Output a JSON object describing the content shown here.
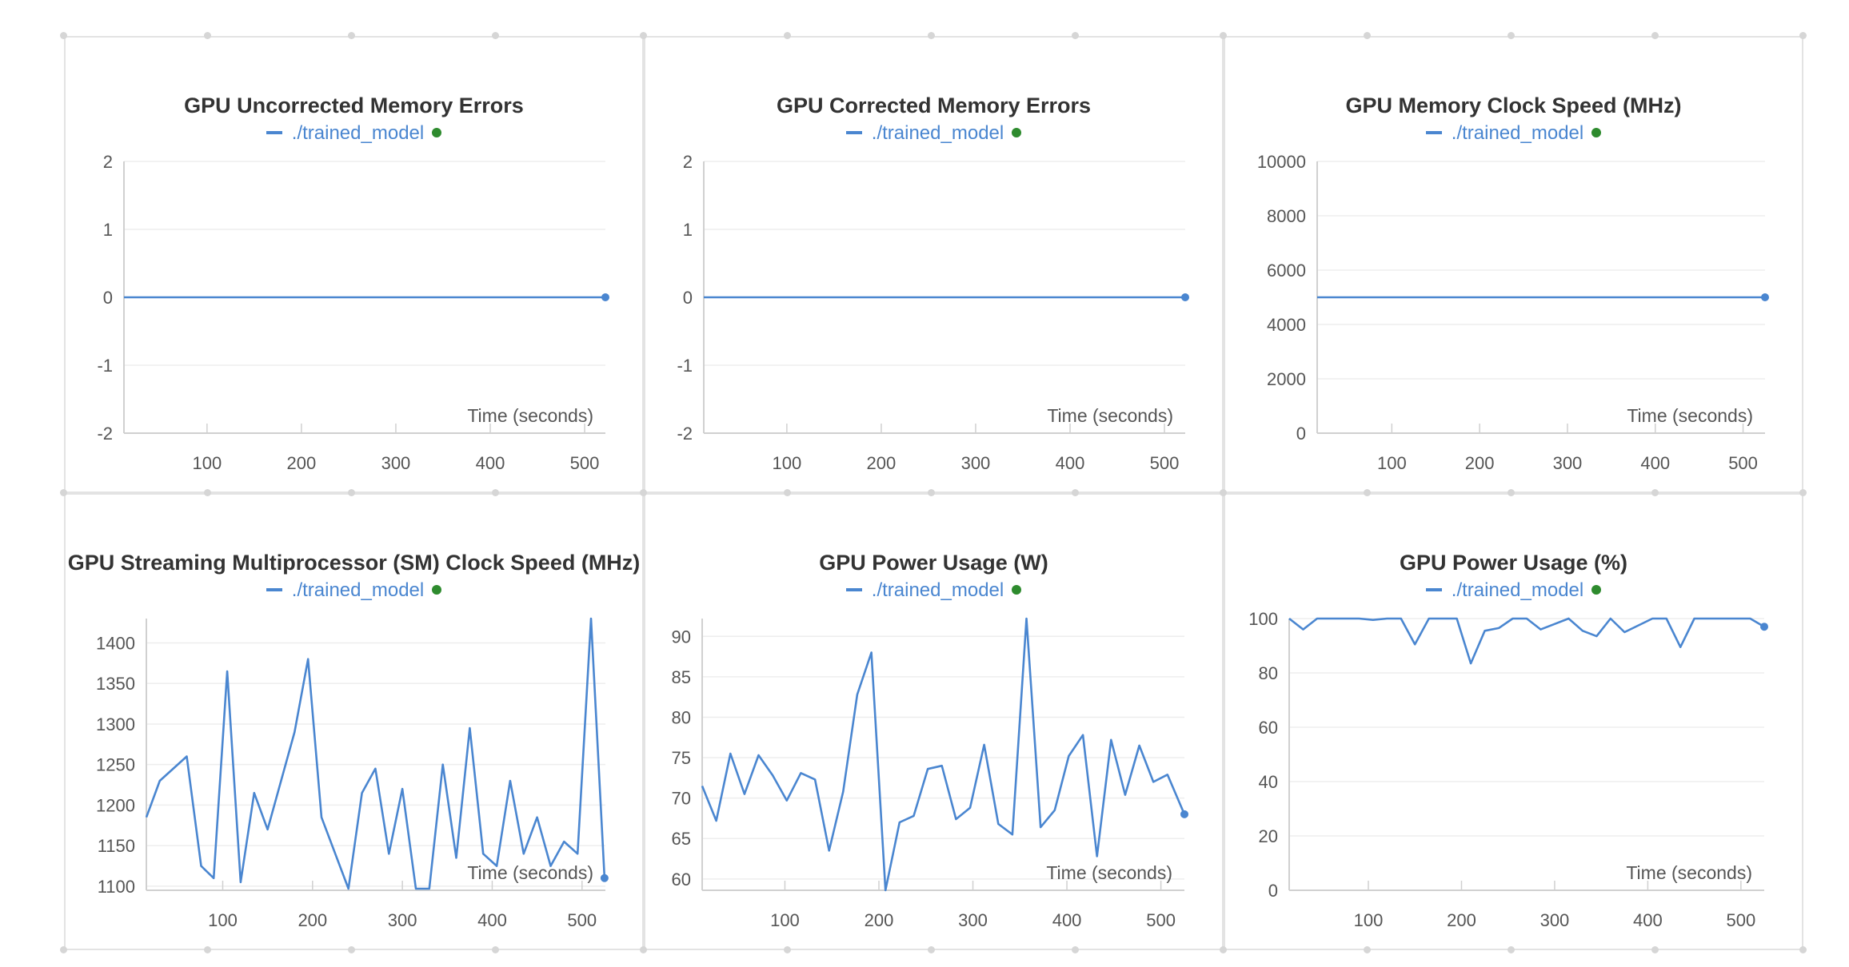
{
  "colors": {
    "series": "#4a86d0",
    "legend_dot": "#2e8b2e",
    "grid": "#eeeeee",
    "axis": "#d0d0d0",
    "text": "#555555"
  },
  "chart_data": [
    {
      "type": "line",
      "title": "GPU Uncorrected Memory Errors",
      "xlabel": "Time (seconds)",
      "ylabel": "",
      "xlim": [
        12,
        522
      ],
      "ylim": [
        -2,
        2
      ],
      "x_ticks": [
        100,
        200,
        300,
        400,
        500
      ],
      "y_ticks": [
        -2,
        -1,
        0,
        1,
        2
      ],
      "grid": true,
      "legend_position": "top-center",
      "series": [
        {
          "name": "./trained_model",
          "x": [
            12,
            522
          ],
          "y": [
            0,
            0
          ]
        }
      ]
    },
    {
      "type": "line",
      "title": "GPU Corrected Memory Errors",
      "xlabel": "Time (seconds)",
      "ylabel": "",
      "xlim": [
        12,
        522
      ],
      "ylim": [
        -2,
        2
      ],
      "x_ticks": [
        100,
        200,
        300,
        400,
        500
      ],
      "y_ticks": [
        -2,
        -1,
        0,
        1,
        2
      ],
      "grid": true,
      "legend_position": "top-center",
      "series": [
        {
          "name": "./trained_model",
          "x": [
            12,
            522
          ],
          "y": [
            0,
            0
          ]
        }
      ]
    },
    {
      "type": "line",
      "title": "GPU Memory Clock Speed (MHz)",
      "xlabel": "Time (seconds)",
      "ylabel": "",
      "xlim": [
        15,
        525
      ],
      "ylim": [
        0,
        10000
      ],
      "x_ticks": [
        100,
        200,
        300,
        400,
        500
      ],
      "y_ticks": [
        0,
        2000,
        4000,
        6000,
        8000,
        10000
      ],
      "grid": true,
      "legend_position": "top-center",
      "series": [
        {
          "name": "./trained_model",
          "x": [
            15,
            525
          ],
          "y": [
            5000,
            5000
          ]
        }
      ]
    },
    {
      "type": "line",
      "title": "GPU Streaming Multiprocessor (SM) Clock Speed (MHz)",
      "xlabel": "Time (seconds)",
      "ylabel": "",
      "xlim": [
        15,
        526
      ],
      "ylim": [
        1095,
        1430
      ],
      "x_ticks": [
        100,
        200,
        300,
        400,
        500
      ],
      "y_ticks": [
        1100,
        1150,
        1200,
        1250,
        1300,
        1350,
        1400
      ],
      "grid": true,
      "legend_position": "top-center",
      "series": [
        {
          "name": "./trained_model",
          "x": [
            15,
            30,
            60,
            76,
            90,
            105,
            120,
            135,
            150,
            180,
            195,
            210,
            240,
            255,
            270,
            285,
            300,
            315,
            330,
            345,
            360,
            375,
            390,
            405,
            420,
            435,
            450,
            465,
            480,
            495,
            510,
            525
          ],
          "y": [
            1185,
            1230,
            1260,
            1125,
            1110,
            1365,
            1105,
            1215,
            1170,
            1290,
            1380,
            1185,
            1097,
            1215,
            1245,
            1140,
            1220,
            1097,
            1097,
            1250,
            1135,
            1295,
            1140,
            1125,
            1230,
            1140,
            1185,
            1125,
            1155,
            1140,
            1430,
            1110
          ]
        }
      ]
    },
    {
      "type": "line",
      "title": "GPU Power Usage (W)",
      "xlabel": "Time (seconds)",
      "ylabel": "",
      "xlim": [
        12,
        525
      ],
      "ylim": [
        58.6,
        92.2
      ],
      "x_ticks": [
        100,
        200,
        300,
        400,
        500
      ],
      "y_ticks": [
        60,
        65,
        70,
        75,
        80,
        85,
        90
      ],
      "grid": true,
      "legend_position": "top-center",
      "series": [
        {
          "name": "./trained_model",
          "x": [
            12,
            27,
            42,
            57,
            72,
            87,
            102,
            117,
            132,
            147,
            162,
            177,
            192,
            207,
            222,
            237,
            252,
            267,
            282,
            297,
            312,
            327,
            342,
            357,
            372,
            387,
            402,
            417,
            432,
            447,
            462,
            477,
            492,
            507,
            525
          ],
          "y": [
            71.5,
            67.2,
            75.5,
            70.5,
            75.3,
            72.8,
            69.7,
            73.1,
            72.3,
            63.5,
            70.8,
            82.8,
            88,
            58.6,
            67,
            67.8,
            73.6,
            74,
            67.4,
            68.8,
            76.6,
            66.8,
            65.5,
            92.2,
            66.4,
            68.5,
            75.2,
            77.8,
            62.8,
            77.2,
            70.4,
            76.5,
            72,
            72.9,
            68
          ]
        }
      ]
    },
    {
      "type": "line",
      "title": "GPU Power Usage (%)",
      "xlabel": "Time (seconds)",
      "ylabel": "",
      "xlim": [
        15,
        525
      ],
      "ylim": [
        0,
        100
      ],
      "x_ticks": [
        100,
        200,
        300,
        400,
        500
      ],
      "y_ticks": [
        0,
        20,
        40,
        60,
        80,
        100
      ],
      "grid": true,
      "legend_position": "top-center",
      "series": [
        {
          "name": "./trained_model",
          "x": [
            15,
            30,
            45,
            60,
            75,
            90,
            105,
            120,
            135,
            150,
            165,
            180,
            195,
            210,
            225,
            240,
            255,
            270,
            285,
            300,
            315,
            330,
            345,
            360,
            375,
            390,
            405,
            420,
            435,
            450,
            465,
            480,
            495,
            510,
            525
          ],
          "y": [
            100,
            96,
            100,
            100,
            100,
            100,
            99.5,
            100,
            100,
            90.5,
            100,
            100,
            100,
            83.5,
            95.5,
            96.5,
            100,
            100,
            96,
            98,
            100,
            95.5,
            93.5,
            100,
            95,
            97.5,
            100,
            100,
            89.5,
            100,
            100,
            100,
            100,
            100,
            97
          ]
        }
      ]
    }
  ]
}
